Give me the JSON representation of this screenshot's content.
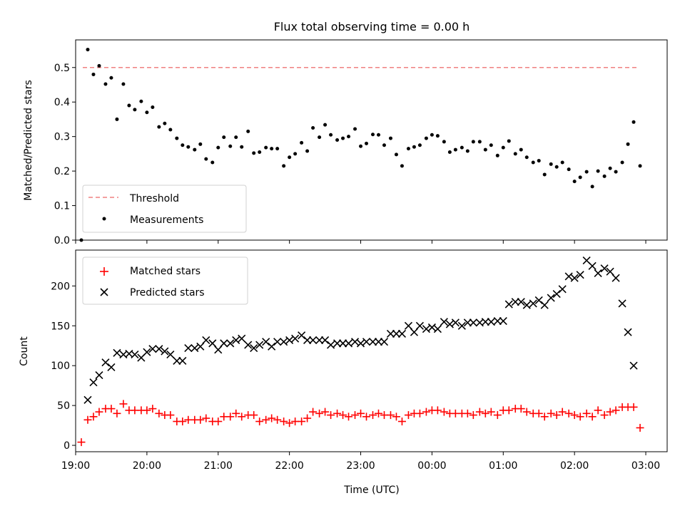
{
  "chart_data": [
    {
      "type": "scatter",
      "title": "Flux total observing time = 0.00 h",
      "ylabel": "Matched/Predicted stars",
      "xlim": [
        19.0,
        27.3
      ],
      "ylim": [
        0,
        0.58
      ],
      "yticks": [
        "0.0",
        "0.1",
        "0.2",
        "0.3",
        "0.4",
        "0.5"
      ],
      "ytick_values": [
        0,
        0.1,
        0.2,
        0.3,
        0.4,
        0.5
      ],
      "legend_placement": "lower-left",
      "threshold": {
        "name": "Threshold",
        "y": 0.5,
        "x_range": [
          19.1,
          26.9
        ],
        "color": "#f08080"
      },
      "series": [
        {
          "name": "Measurements",
          "color": "#000000",
          "x": [
            19.08,
            19.17,
            19.25,
            19.33,
            19.42,
            19.5,
            19.58,
            19.67,
            19.75,
            19.83,
            19.92,
            20.0,
            20.08,
            20.17,
            20.25,
            20.33,
            20.42,
            20.5,
            20.58,
            20.67,
            20.75,
            20.83,
            20.92,
            21.0,
            21.08,
            21.17,
            21.25,
            21.33,
            21.42,
            21.5,
            21.58,
            21.67,
            21.75,
            21.83,
            21.92,
            22.0,
            22.08,
            22.17,
            22.25,
            22.33,
            22.42,
            22.5,
            22.58,
            22.67,
            22.75,
            22.83,
            22.92,
            23.0,
            23.08,
            23.17,
            23.25,
            23.33,
            23.42,
            23.5,
            23.58,
            23.67,
            23.75,
            23.83,
            23.92,
            24.0,
            24.08,
            24.17,
            24.25,
            24.33,
            24.42,
            24.5,
            24.58,
            24.67,
            24.75,
            24.83,
            24.92,
            25.0,
            25.08,
            25.17,
            25.25,
            25.33,
            25.42,
            25.5,
            25.58,
            25.67,
            25.75,
            25.83,
            25.92,
            26.0,
            26.08,
            26.17,
            26.25,
            26.33,
            26.42,
            26.5,
            26.58,
            26.67,
            26.75,
            26.83,
            26.92
          ],
          "y": [
            0.0,
            0.552,
            0.48,
            0.505,
            0.452,
            0.47,
            0.35,
            0.452,
            0.39,
            0.378,
            0.402,
            0.37,
            0.385,
            0.328,
            0.338,
            0.32,
            0.295,
            0.275,
            0.27,
            0.262,
            0.278,
            0.235,
            0.225,
            0.268,
            0.298,
            0.272,
            0.298,
            0.27,
            0.315,
            0.252,
            0.255,
            0.268,
            0.265,
            0.265,
            0.215,
            0.24,
            0.25,
            0.282,
            0.258,
            0.325,
            0.298,
            0.334,
            0.305,
            0.29,
            0.295,
            0.3,
            0.322,
            0.272,
            0.28,
            0.306,
            0.305,
            0.275,
            0.295,
            0.248,
            0.215,
            0.265,
            0.27,
            0.275,
            0.295,
            0.305,
            0.302,
            0.285,
            0.255,
            0.262,
            0.268,
            0.258,
            0.285,
            0.285,
            0.262,
            0.275,
            0.245,
            0.268,
            0.287,
            0.25,
            0.262,
            0.24,
            0.225,
            0.23,
            0.19,
            0.22,
            0.212,
            0.225,
            0.205,
            0.17,
            0.182,
            0.198,
            0.155,
            0.2,
            0.185,
            0.208,
            0.198,
            0.225,
            0.278,
            0.342,
            0.215
          ]
        }
      ]
    },
    {
      "type": "scatter",
      "xlabel": "Time (UTC)",
      "ylabel": "Count",
      "xlim": [
        19.0,
        27.3
      ],
      "ylim": [
        -8,
        245
      ],
      "xticks": [
        "19:00",
        "20:00",
        "21:00",
        "22:00",
        "23:00",
        "00:00",
        "01:00",
        "02:00",
        "03:00"
      ],
      "xtick_values": [
        19,
        20,
        21,
        22,
        23,
        24,
        25,
        26,
        27
      ],
      "yticks": [
        "0",
        "50",
        "100",
        "150",
        "200"
      ],
      "ytick_values": [
        0,
        50,
        100,
        150,
        200
      ],
      "legend_placement": "upper-left",
      "series": [
        {
          "name": "Matched stars",
          "marker": "plus",
          "color": "#ff0000",
          "x": [
            19.08,
            19.17,
            19.25,
            19.33,
            19.42,
            19.5,
            19.58,
            19.67,
            19.75,
            19.83,
            19.92,
            20.0,
            20.08,
            20.17,
            20.25,
            20.33,
            20.42,
            20.5,
            20.58,
            20.67,
            20.75,
            20.83,
            20.92,
            21.0,
            21.08,
            21.17,
            21.25,
            21.33,
            21.42,
            21.5,
            21.58,
            21.67,
            21.75,
            21.83,
            21.92,
            22.0,
            22.08,
            22.17,
            22.25,
            22.33,
            22.42,
            22.5,
            22.58,
            22.67,
            22.75,
            22.83,
            22.92,
            23.0,
            23.08,
            23.17,
            23.25,
            23.33,
            23.42,
            23.5,
            23.58,
            23.67,
            23.75,
            23.83,
            23.92,
            24.0,
            24.08,
            24.17,
            24.25,
            24.33,
            24.42,
            24.5,
            24.58,
            24.67,
            24.75,
            24.83,
            24.92,
            25.0,
            25.08,
            25.17,
            25.25,
            25.33,
            25.42,
            25.5,
            25.58,
            25.67,
            25.75,
            25.83,
            25.92,
            26.0,
            26.08,
            26.17,
            26.25,
            26.33,
            26.42,
            26.5,
            26.58,
            26.67,
            26.75,
            26.83,
            26.92
          ],
          "y": [
            4,
            32,
            36,
            42,
            46,
            46,
            40,
            52,
            44,
            44,
            44,
            44,
            46,
            40,
            38,
            38,
            30,
            30,
            32,
            32,
            32,
            34,
            30,
            30,
            36,
            36,
            40,
            36,
            38,
            38,
            30,
            32,
            34,
            32,
            30,
            28,
            30,
            30,
            34,
            42,
            40,
            42,
            38,
            40,
            38,
            36,
            38,
            40,
            36,
            38,
            40,
            38,
            38,
            36,
            30,
            38,
            40,
            40,
            42,
            44,
            44,
            42,
            40,
            40,
            40,
            40,
            38,
            42,
            40,
            42,
            38,
            44,
            44,
            46,
            46,
            42,
            40,
            40,
            36,
            40,
            38,
            42,
            40,
            38,
            36,
            40,
            36,
            44,
            38,
            42,
            44,
            48,
            48,
            48,
            22
          ]
        },
        {
          "name": "Predicted stars",
          "marker": "x",
          "color": "#000000",
          "x": [
            19.08,
            19.17,
            19.25,
            19.33,
            19.42,
            19.5,
            19.58,
            19.67,
            19.75,
            19.83,
            19.92,
            20.0,
            20.08,
            20.17,
            20.25,
            20.33,
            20.42,
            20.5,
            20.58,
            20.67,
            20.75,
            20.83,
            20.92,
            21.0,
            21.08,
            21.17,
            21.25,
            21.33,
            21.42,
            21.5,
            21.58,
            21.67,
            21.75,
            21.83,
            21.92,
            22.0,
            22.08,
            22.17,
            22.25,
            22.33,
            22.42,
            22.5,
            22.58,
            22.67,
            22.75,
            22.83,
            22.92,
            23.0,
            23.08,
            23.17,
            23.25,
            23.33,
            23.42,
            23.5,
            23.58,
            23.67,
            23.75,
            23.83,
            23.92,
            24.0,
            24.08,
            24.17,
            24.25,
            24.33,
            24.42,
            24.5,
            24.58,
            24.67,
            24.75,
            24.83,
            24.92,
            25.0,
            25.08,
            25.17,
            25.25,
            25.33,
            25.42,
            25.5,
            25.58,
            25.67,
            25.75,
            25.83,
            25.92,
            26.0,
            26.08,
            26.17,
            26.25,
            26.33,
            26.42,
            26.5,
            26.58,
            26.67,
            26.75,
            26.83,
            26.92
          ],
          "y": [
            null,
            57,
            79,
            88,
            104,
            98,
            116,
            114,
            115,
            114,
            110,
            117,
            121,
            121,
            118,
            114,
            106,
            106,
            122,
            122,
            124,
            132,
            128,
            120,
            128,
            128,
            132,
            134,
            126,
            122,
            126,
            130,
            124,
            130,
            130,
            132,
            134,
            138,
            132,
            132,
            132,
            132,
            126,
            128,
            128,
            128,
            130,
            128,
            130,
            130,
            130,
            130,
            140,
            140,
            140,
            150,
            142,
            150,
            146,
            148,
            146,
            155,
            152,
            154,
            150,
            154,
            154,
            154,
            155,
            155,
            156,
            156,
            177,
            180,
            180,
            176,
            178,
            182,
            176,
            185,
            190,
            196,
            212,
            210,
            214,
            232,
            225,
            216,
            222,
            218,
            210,
            178,
            142,
            100,
            null
          ]
        }
      ]
    }
  ]
}
